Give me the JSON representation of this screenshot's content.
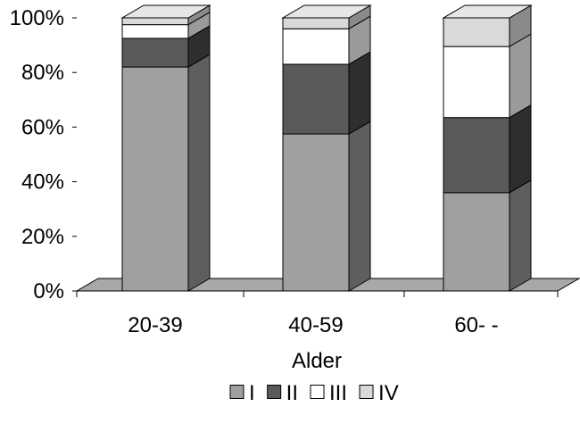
{
  "chart_data": {
    "type": "bar",
    "stacked": true,
    "three_d": true,
    "title": "",
    "xlabel": "Alder",
    "ylabel": "",
    "categories": [
      "20-39",
      "40-59",
      "60- -"
    ],
    "ylim": [
      0,
      100
    ],
    "y_ticks": [
      "0%",
      "20%",
      "40%",
      "60%",
      "80%",
      "100%"
    ],
    "series": [
      {
        "name": "I",
        "color": "#a0a0a0",
        "side_color": "#5e5e5e",
        "top_color": "#bdbdbd",
        "values": [
          82,
          57.5,
          36
        ]
      },
      {
        "name": "II",
        "color": "#5a5a5a",
        "side_color": "#2e2e2e",
        "top_color": "#7a7a7a",
        "values": [
          10.5,
          25.5,
          27.5
        ]
      },
      {
        "name": "III",
        "color": "#ffffff",
        "side_color": "#9a9a9a",
        "top_color": "#f0f0f0",
        "values": [
          5,
          13,
          26
        ]
      },
      {
        "name": "IV",
        "color": "#d9d9d9",
        "side_color": "#8a8a8a",
        "top_color": "#e6e6e6",
        "values": [
          2.5,
          4,
          10.5
        ]
      }
    ],
    "floor_color": "#a8a8a8",
    "legend_position": "bottom"
  }
}
